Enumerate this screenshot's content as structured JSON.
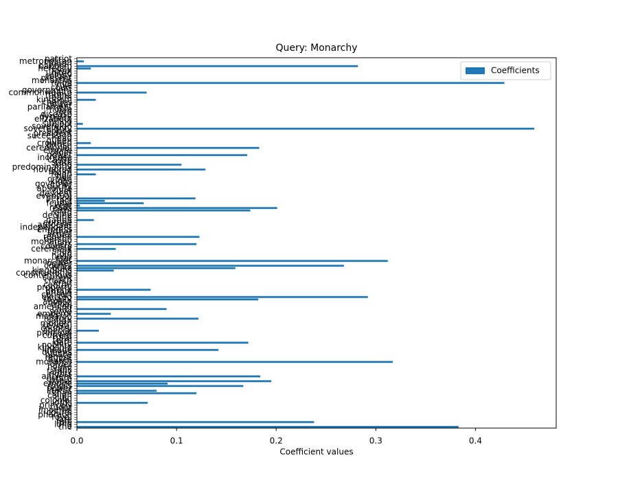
{
  "chart_data": {
    "type": "barh",
    "title": "Query: Monarchy",
    "xlabel": "Coefficient values",
    "legend": "upper right",
    "color": "#1f77b4",
    "series": [
      {
        "name": "Coefficients",
        "color": "#1f77b4",
        "values": [
          0,
          0.007,
          0,
          0.282,
          0.014,
          0,
          0,
          0,
          0,
          0,
          0.429,
          0,
          0,
          0,
          0.07,
          0,
          0,
          0.019,
          0,
          0,
          0,
          0,
          0,
          0,
          0,
          0,
          0,
          0.006,
          0,
          0.459,
          0,
          0,
          0,
          0,
          0,
          0.014,
          0,
          0.183,
          0,
          0,
          0.171,
          0,
          0,
          0,
          0.105,
          0,
          0.129,
          0,
          0.019,
          0,
          0,
          0,
          0,
          0,
          0,
          0,
          0,
          0,
          0.119,
          0.028,
          0.067,
          0.003,
          0.201,
          0.174,
          0,
          0,
          0,
          0.017,
          0,
          0,
          0,
          0,
          0,
          0,
          0.123,
          0,
          0,
          0.12,
          0,
          0.039,
          0,
          0,
          0,
          0,
          0.312,
          0,
          0.268,
          0.159,
          0.037,
          0,
          0,
          0,
          0,
          0,
          0,
          0,
          0.074,
          0,
          0,
          0.292,
          0.182,
          0,
          0,
          0,
          0.09,
          0,
          0.034,
          0,
          0.122,
          0,
          0,
          0,
          0,
          0.022,
          0,
          0,
          0,
          0,
          0.172,
          0,
          0,
          0.142,
          0,
          0,
          0,
          0,
          0.317,
          0,
          0,
          0,
          0,
          0,
          0.184,
          0,
          0.195,
          0.091,
          0.167,
          0,
          0.08,
          0.12,
          0,
          0,
          0,
          0.071,
          0,
          0,
          0,
          0,
          0,
          0,
          0,
          0.238,
          0,
          0.383
        ]
      }
    ],
    "categories": [
      "patriot",
      "metropolitan",
      "baron",
      "baptism",
      "heredity",
      "royal",
      "united",
      "colony",
      "present",
      "monarchs",
      "reign",
      "rule",
      "court",
      "government",
      "commonwealth",
      "throne",
      "realm",
      "kingdom",
      "charles",
      "power",
      "parliament",
      "noble",
      "lord",
      "disease",
      "dynasty",
      "elizabeth",
      "ruling",
      "subject",
      "sovereign",
      "sovereignty",
      "prince",
      "president",
      "succession",
      "head",
      "queen",
      "crowned",
      "british",
      "ceremonial",
      "empire",
      "order",
      "power",
      "increase",
      "castle",
      "state",
      "king",
      "predominantly",
      "novgorod",
      "realm",
      "reign",
      "heir",
      "crown",
      "kings",
      "governor",
      "duchy",
      "absolute",
      "ruler",
      "descent",
      "eventual",
      "period",
      "fact",
      "feudal",
      "kept",
      "reads",
      "term",
      "ruled",
      "decline",
      "title",
      "nation",
      "europe",
      "autocrat",
      "independent",
      "empress",
      "father",
      "actual",
      "regime",
      "person",
      "monarchy",
      "rulers",
      "country",
      "ceremony",
      "shah",
      "old",
      "head",
      "tsar",
      "monarchies",
      "power",
      "county",
      "duke",
      "kingdoms",
      "constitutional",
      "contentious",
      "current",
      "church",
      "emir",
      "central",
      "property",
      "throne",
      "britain",
      "consort",
      "elected",
      "royalty",
      "abolish",
      "tribal",
      "american",
      "chief",
      "serve",
      "emperor",
      "monarch",
      "history",
      "sultan",
      "modern",
      "several",
      "country",
      "special",
      "principal",
      "current",
      "rural",
      "term",
      "date",
      "nobility",
      "kingship",
      "lineage",
      "queens",
      "palace",
      "regent",
      "dukes",
      "monarch",
      "order",
      "house",
      "rank",
      "family",
      "rights",
      "ancient",
      "estate",
      "papal",
      "empire",
      "royals",
      "power",
      "status",
      "khan",
      "caliph",
      "clan",
      "colonial",
      "lords",
      "princely",
      "tudor",
      "imperial",
      "courts",
      "pharaoh",
      "royal",
      "late",
      "rule",
      "long",
      "the"
    ],
    "xlim": [
      0,
      0.481
    ],
    "xticks": [
      {
        "value": 0,
        "label": "0.0"
      },
      0.1,
      0.2,
      0.3,
      0.4
    ]
  }
}
